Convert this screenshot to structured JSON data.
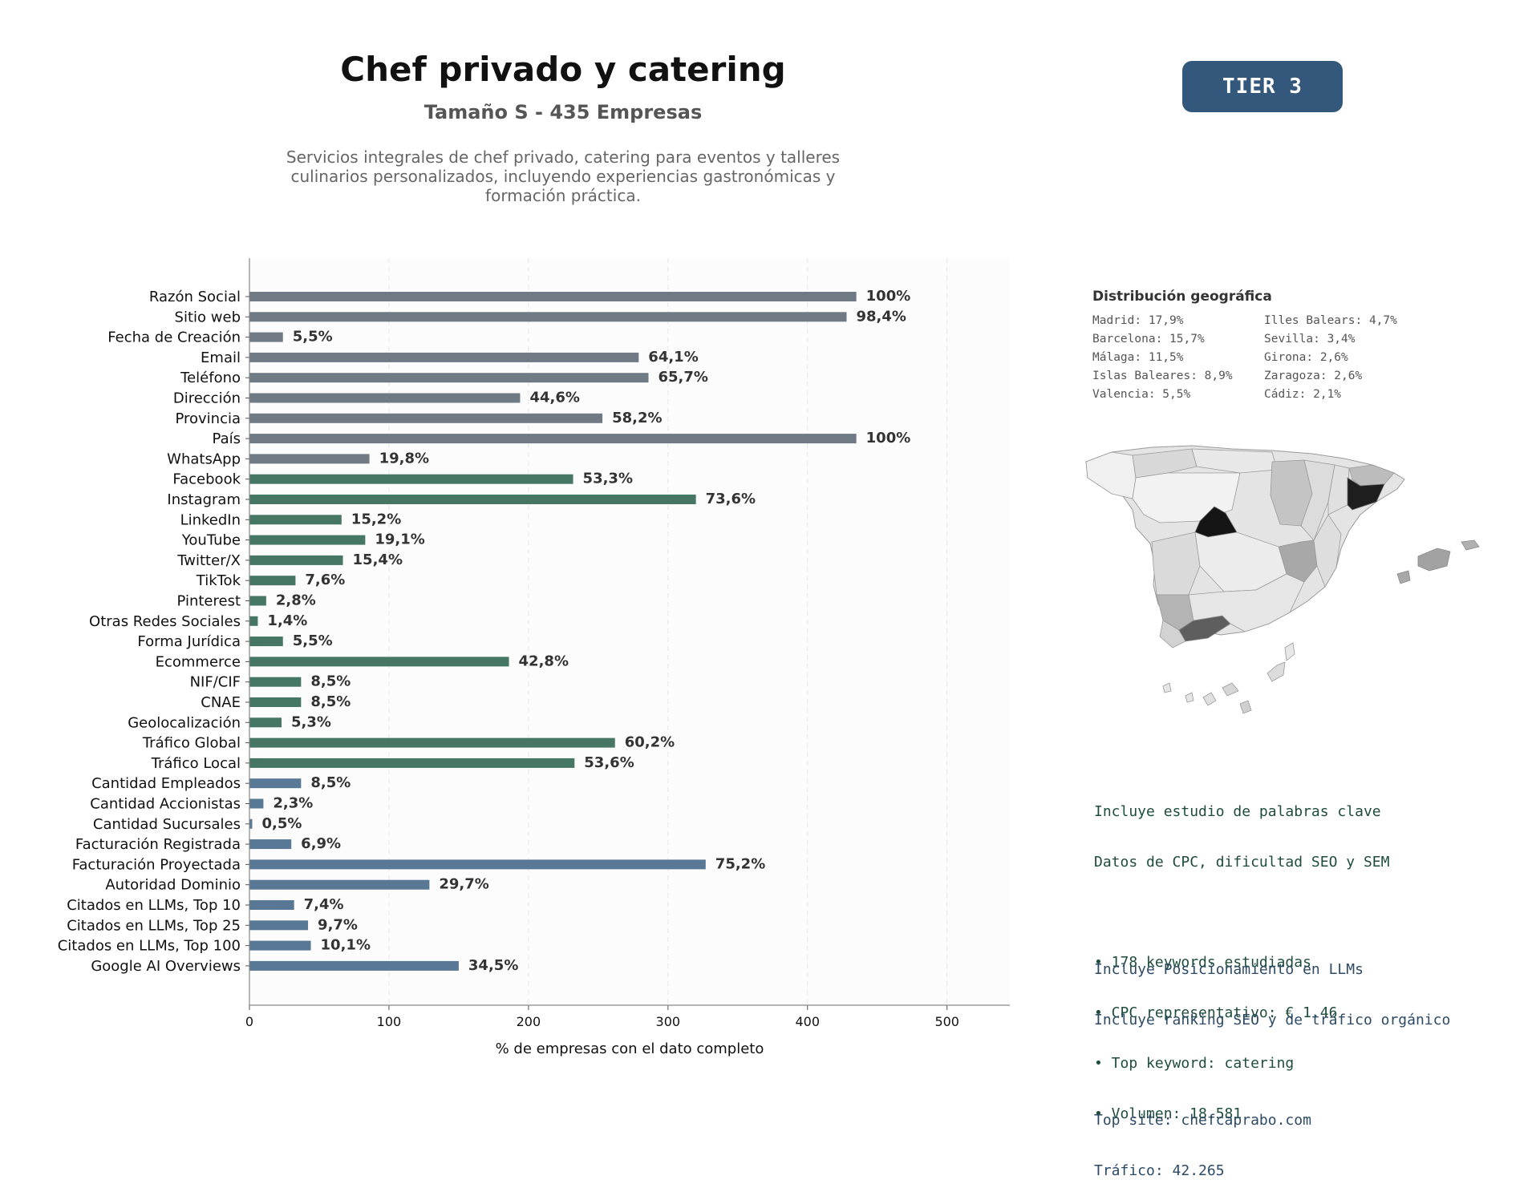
{
  "header": {
    "title": "Chef privado y catering",
    "subtitle": "Tamaño S - 435 Empresas",
    "description": "Servicios integrales de chef privado, catering para eventos y talleres culinarios personalizados, incluyendo experiencias gastronómicas y formación práctica.",
    "tier": "TIER 3"
  },
  "colors": {
    "gray": "#6f7a85",
    "green": "#467764",
    "blue": "#587896",
    "tier_bg": "#34587c"
  },
  "chart_data": {
    "type": "bar",
    "orientation": "horizontal",
    "xlabel": "% de empresas con el dato completo",
    "xlim": [
      0,
      545
    ],
    "xticks": [
      0,
      100,
      200,
      300,
      400,
      500
    ],
    "grid": true,
    "total_companies": 435,
    "categories": [
      "Razón Social",
      "Sitio web",
      "Fecha de Creación",
      "Email",
      "Teléfono",
      "Dirección",
      "Provincia",
      "País",
      "WhatsApp",
      "Facebook",
      "Instagram",
      "LinkedIn",
      "YouTube",
      "Twitter/X",
      "TikTok",
      "Pinterest",
      "Otras Redes Sociales",
      "Forma Jurídica",
      "Ecommerce",
      "NIF/CIF",
      "CNAE",
      "Geolocalización",
      "Tráfico Global",
      "Tráfico Local",
      "Cantidad Empleados",
      "Cantidad Accionistas",
      "Cantidad Sucursales",
      "Facturación Registrada",
      "Facturación Proyectada",
      "Autoridad Dominio",
      "Citados en LLMs, Top 10",
      "Citados en LLMs, Top 25",
      "Citados en LLMs, Top 100",
      "Google AI Overviews"
    ],
    "values": [
      435,
      428,
      24,
      279,
      286,
      194,
      253,
      435,
      86,
      232,
      320,
      66,
      83,
      67,
      33,
      12,
      6,
      24,
      186,
      37,
      37,
      23,
      262,
      233,
      37,
      10,
      2,
      30,
      327,
      129,
      32,
      42,
      44,
      150
    ],
    "labels": [
      "100%",
      "98,4%",
      "5,5%",
      "64,1%",
      "65,7%",
      "44,6%",
      "58,2%",
      "100%",
      "19,8%",
      "53,3%",
      "73,6%",
      "15,2%",
      "19,1%",
      "15,4%",
      "7,6%",
      "2,8%",
      "1,4%",
      "5,5%",
      "42,8%",
      "8,5%",
      "8,5%",
      "5,3%",
      "60,2%",
      "53,6%",
      "8,5%",
      "2,3%",
      "0,5%",
      "6,9%",
      "75,2%",
      "29,7%",
      "7,4%",
      "9,7%",
      "10,1%",
      "34,5%"
    ],
    "groups": [
      "gray",
      "gray",
      "gray",
      "gray",
      "gray",
      "gray",
      "gray",
      "gray",
      "gray",
      "green",
      "green",
      "green",
      "green",
      "green",
      "green",
      "green",
      "green",
      "green",
      "green",
      "green",
      "green",
      "green",
      "green",
      "green",
      "blue",
      "blue",
      "blue",
      "blue",
      "blue",
      "blue",
      "blue",
      "blue",
      "blue",
      "blue"
    ]
  },
  "geo": {
    "title": "Distribución geográfica",
    "items": [
      "Madrid: 17,9%",
      "Illes Balears: 4,7%",
      "Barcelona: 15,7%",
      "Sevilla: 3,4%",
      "Málaga: 11,5%",
      "Girona: 2,6%",
      "Islas Baleares: 8,9%",
      "Zaragoza: 2,6%",
      "Valencia: 5,5%",
      "Cádiz: 2,1%"
    ]
  },
  "keywords": {
    "lines": [
      "Incluye estudio de palabras clave",
      "Datos de CPC, dificultad SEO y SEM",
      "",
      "• 178 keywords estudiadas",
      "• CPC representativo: € 1.46",
      "• Top keyword: catering",
      "• Volumen: 18.581"
    ]
  },
  "llm": {
    "lines": [
      "Incluye Posicionamiento en LLMs",
      "Incluye ranking SEO y de tráfico orgánico",
      "",
      "Top site: chefcaprabo.com",
      "Tráfico: 42.265"
    ]
  }
}
